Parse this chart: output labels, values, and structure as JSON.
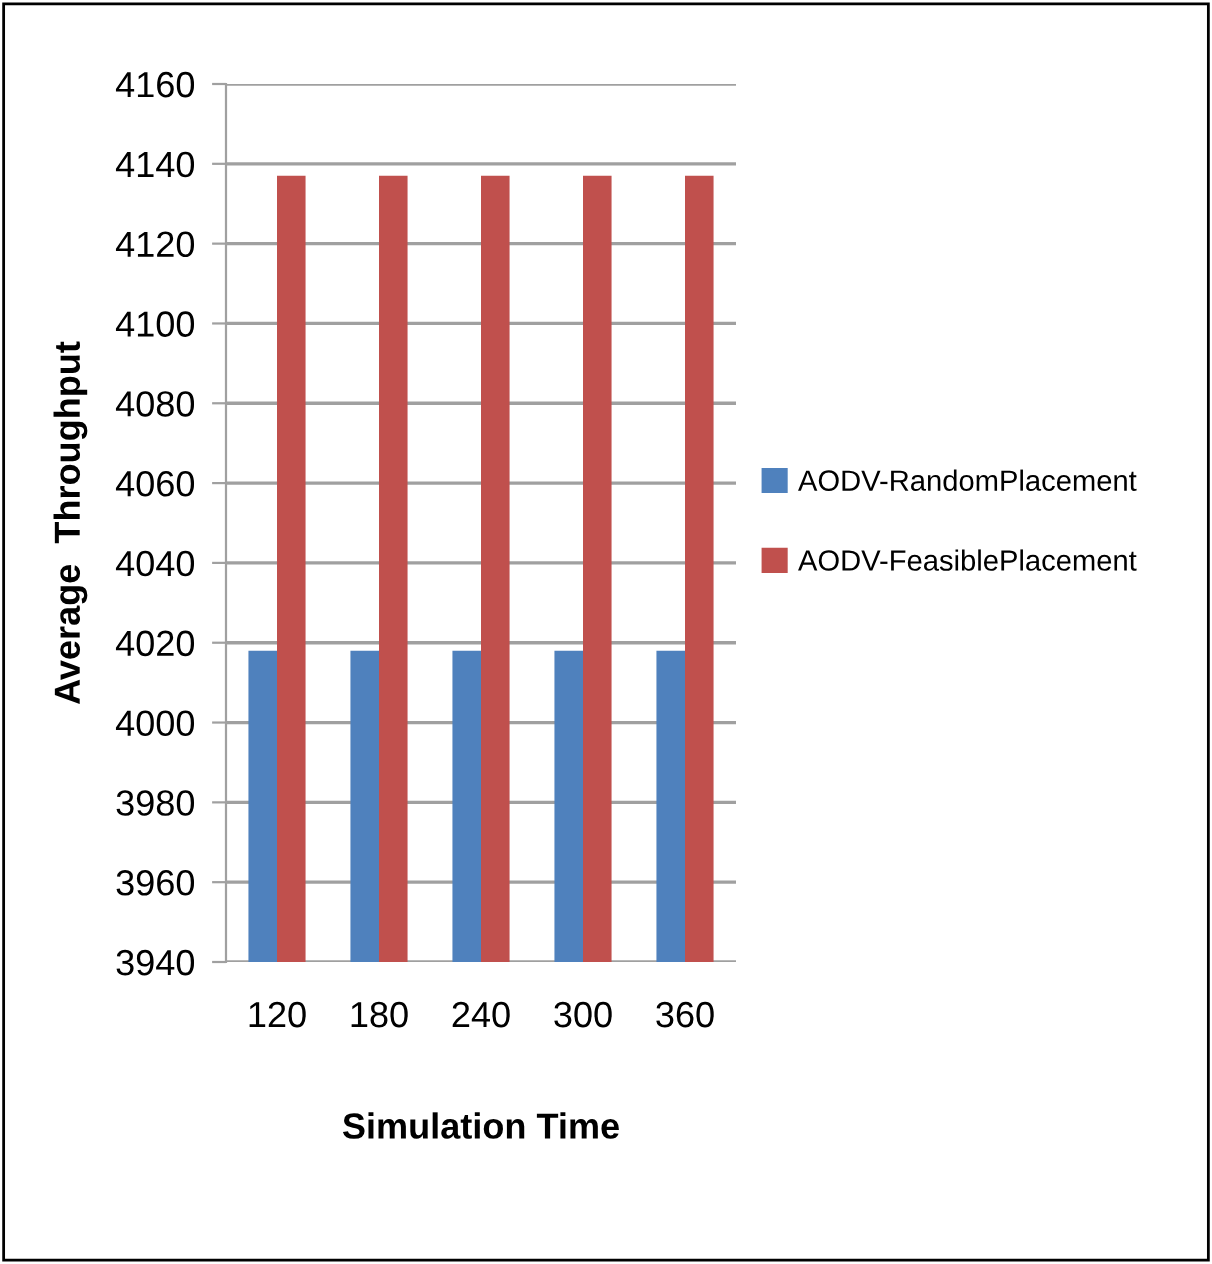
{
  "chart_data": {
    "type": "bar",
    "xlabel": "Simulation Time",
    "ylabel": "Average  Throughput",
    "categories": [
      "120",
      "180",
      "240",
      "300",
      "360"
    ],
    "series": [
      {
        "name": "AODV-RandomPlacement",
        "color": "#4f81bd",
        "values": [
          4018,
          4018,
          4018,
          4018,
          4018
        ]
      },
      {
        "name": "AODV-FeasiblePlacement",
        "color": "#c0504d",
        "values": [
          4137,
          4137,
          4137,
          4137,
          4137
        ]
      }
    ],
    "ylim": [
      3940,
      4160
    ],
    "yticks": [
      3940,
      3960,
      3980,
      4000,
      4020,
      4040,
      4060,
      4080,
      4100,
      4120,
      4140,
      4160
    ],
    "grid": "y",
    "legend": "right"
  }
}
